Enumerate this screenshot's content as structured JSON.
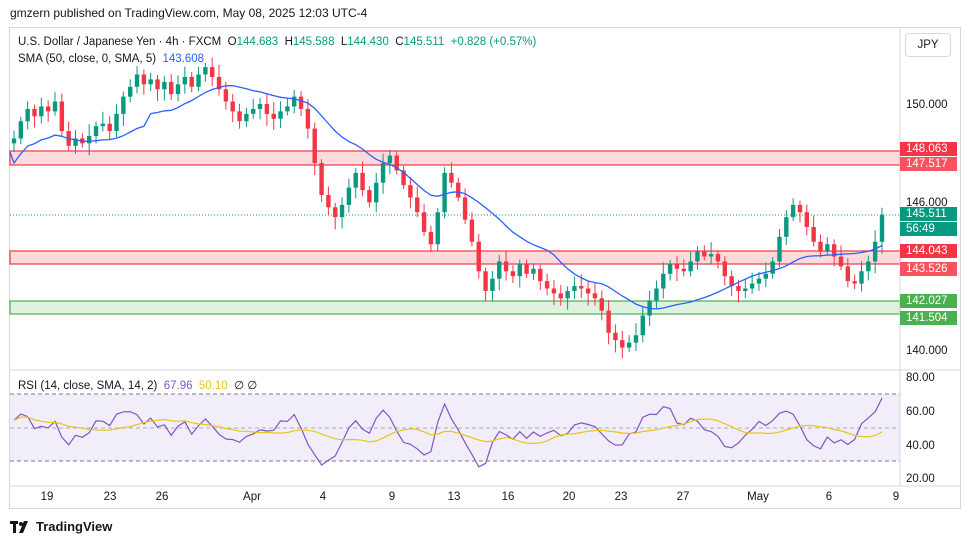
{
  "header": {
    "publisher_line": "gmzern published on TradingView.com, May 08, 2025 12:03 UTC-4"
  },
  "legend": {
    "symbol": "U.S. Dollar / Japanese Yen · 4h · FXCM",
    "open_label": "O",
    "open": "144.683",
    "high_label": "H",
    "high": "145.588",
    "low_label": "L",
    "low": "144.430",
    "close_label": "C",
    "close": "145.511",
    "change": "+0.828 (+0.57%)",
    "sma_label": "SMA (50, close, 0, SMA, 5)",
    "sma_value": "143.608",
    "rsi_label": "RSI (14, close, SMA, 14, 2)",
    "rsi_value": "67.96",
    "rsi_ma_value": "50.10",
    "rsi_extra": "∅ ∅"
  },
  "currency_button": "JPY",
  "price_axis": [
    "150.000",
    "146.000",
    "140.000"
  ],
  "rsi_axis": [
    "80.00",
    "60.00",
    "40.00",
    "20.00"
  ],
  "time_axis": [
    "19",
    "23",
    "26",
    "Apr",
    "4",
    "9",
    "13",
    "16",
    "20",
    "23",
    "27",
    "May",
    "6",
    "9"
  ],
  "levels": {
    "zone_high": [
      "148.063",
      "147.517"
    ],
    "zone_mid": [
      "144.043",
      "143.526"
    ],
    "zone_low": [
      "142.027",
      "141.504"
    ]
  },
  "last_price": {
    "price": "145.511",
    "countdown": "56:49"
  },
  "colors": {
    "up": "#089981",
    "down": "#f23645",
    "sma": "#2962ff",
    "rsi": "#7e57c2",
    "rsi_ma": "#e8c51a",
    "red_zone": "#f23645",
    "green_zone": "#4caf50"
  },
  "chart_data": {
    "type": "candlestick",
    "price_range": [
      139.2,
      153.6
    ],
    "close_path": [
      148.6,
      149.3,
      149.8,
      149.5,
      149.9,
      149.7,
      150.1,
      148.9,
      148.3,
      148.6,
      148.4,
      148.7,
      149.1,
      149.2,
      148.9,
      149.6,
      150.3,
      150.7,
      151.2,
      150.8,
      151.0,
      150.6,
      150.9,
      150.4,
      150.8,
      151.1,
      150.7,
      151.2,
      151.5,
      151.1,
      150.6,
      150.1,
      149.7,
      149.3,
      149.6,
      149.8,
      150.0,
      149.6,
      149.4,
      149.7,
      149.9,
      150.3,
      149.8,
      149.0,
      147.6,
      146.3,
      145.8,
      145.4,
      145.9,
      146.6,
      147.2,
      146.5,
      146.0,
      146.8,
      147.6,
      147.9,
      147.3,
      146.7,
      146.2,
      145.6,
      144.8,
      144.3,
      145.6,
      147.2,
      146.8,
      146.2,
      145.3,
      144.4,
      143.2,
      142.4,
      142.9,
      143.6,
      143.2,
      143.0,
      143.5,
      143.1,
      143.3,
      142.8,
      142.5,
      142.3,
      142.1,
      142.4,
      142.6,
      142.5,
      142.3,
      142.1,
      141.6,
      140.7,
      140.4,
      140.1,
      140.3,
      140.6,
      141.4,
      142.0,
      142.5,
      143.1,
      143.5,
      143.3,
      143.2,
      143.6,
      144.0,
      143.8,
      143.9,
      143.6,
      143.0,
      142.6,
      142.4,
      142.5,
      142.7,
      142.9,
      143.1,
      143.6,
      144.6,
      145.4,
      145.9,
      145.6,
      145.0,
      144.4,
      144.0,
      144.3,
      143.8,
      143.4,
      142.8,
      142.7,
      143.2,
      143.6,
      144.4,
      145.5
    ],
    "sma_note": "50-period SMA, blue",
    "rsi_range": [
      15,
      85
    ],
    "rsi_levels": [
      70,
      50,
      30
    ]
  }
}
